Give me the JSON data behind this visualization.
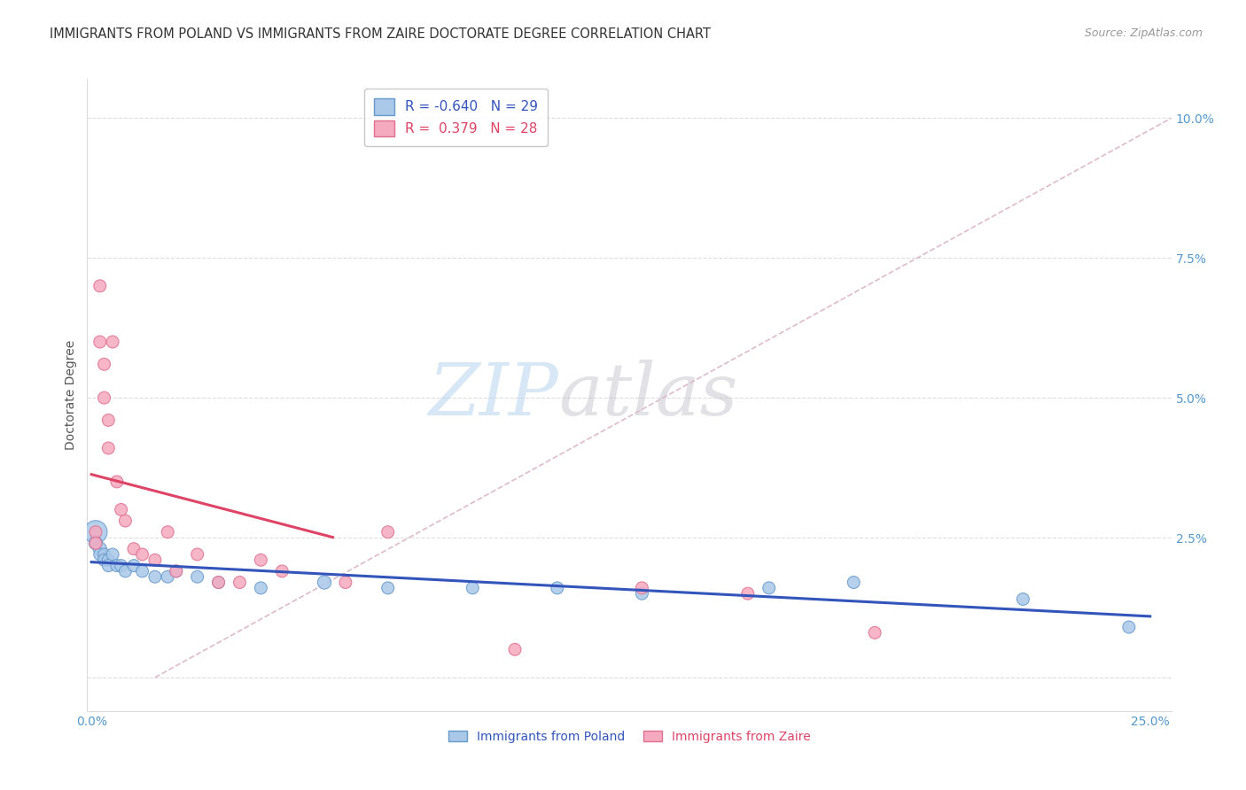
{
  "title": "IMMIGRANTS FROM POLAND VS IMMIGRANTS FROM ZAIRE DOCTORATE DEGREE CORRELATION CHART",
  "source": "Source: ZipAtlas.com",
  "ylabel_label": "Doctorate Degree",
  "x_ticks": [
    0.0,
    0.05,
    0.1,
    0.15,
    0.2,
    0.25
  ],
  "y_ticks": [
    0.0,
    0.025,
    0.05,
    0.075,
    0.1
  ],
  "xlim": [
    -0.001,
    0.255
  ],
  "ylim": [
    -0.006,
    0.107
  ],
  "legend_r_poland": "-0.640",
  "legend_n_poland": "29",
  "legend_r_zaire": " 0.379",
  "legend_n_zaire": "28",
  "poland_color": "#aac8e8",
  "zaire_color": "#f5aabf",
  "poland_edge_color": "#6699cc",
  "zaire_edge_color": "#e07090",
  "poland_line_color": "#3355bb",
  "zaire_line_color": "#dd4466",
  "diag_color": "#ddbbcc",
  "background_color": "#ffffff",
  "grid_color": "#dddddd",
  "title_color": "#333333",
  "tick_color": "#5599cc",
  "source_color": "#999999",
  "ylabel_color": "#555555",
  "title_fontsize": 10.5,
  "axis_label_fontsize": 10,
  "tick_fontsize": 10,
  "legend_fontsize": 11,
  "poland_x": [
    0.001,
    0.001,
    0.002,
    0.002,
    0.003,
    0.003,
    0.004,
    0.004,
    0.005,
    0.006,
    0.007,
    0.008,
    0.01,
    0.012,
    0.015,
    0.018,
    0.02,
    0.025,
    0.03,
    0.04,
    0.055,
    0.07,
    0.09,
    0.11,
    0.13,
    0.16,
    0.18,
    0.22,
    0.245
  ],
  "poland_y": [
    0.026,
    0.024,
    0.023,
    0.022,
    0.022,
    0.021,
    0.021,
    0.02,
    0.022,
    0.02,
    0.02,
    0.019,
    0.02,
    0.019,
    0.018,
    0.018,
    0.019,
    0.018,
    0.017,
    0.016,
    0.017,
    0.016,
    0.016,
    0.016,
    0.015,
    0.016,
    0.017,
    0.014,
    0.009
  ],
  "poland_sizes": [
    350,
    120,
    120,
    100,
    100,
    100,
    100,
    100,
    100,
    100,
    100,
    100,
    100,
    100,
    100,
    100,
    100,
    100,
    100,
    100,
    120,
    100,
    100,
    100,
    100,
    100,
    100,
    100,
    100
  ],
  "zaire_x": [
    0.001,
    0.001,
    0.002,
    0.002,
    0.003,
    0.003,
    0.004,
    0.004,
    0.005,
    0.006,
    0.007,
    0.008,
    0.01,
    0.012,
    0.015,
    0.018,
    0.02,
    0.025,
    0.03,
    0.035,
    0.04,
    0.045,
    0.06,
    0.07,
    0.1,
    0.13,
    0.155,
    0.185
  ],
  "zaire_y": [
    0.026,
    0.024,
    0.07,
    0.06,
    0.056,
    0.05,
    0.046,
    0.041,
    0.06,
    0.035,
    0.03,
    0.028,
    0.023,
    0.022,
    0.021,
    0.026,
    0.019,
    0.022,
    0.017,
    0.017,
    0.021,
    0.019,
    0.017,
    0.026,
    0.005,
    0.016,
    0.015,
    0.008
  ],
  "zaire_sizes": [
    100,
    100,
    100,
    100,
    100,
    100,
    100,
    100,
    100,
    100,
    100,
    100,
    100,
    100,
    100,
    100,
    100,
    100,
    100,
    100,
    100,
    100,
    100,
    100,
    100,
    100,
    100,
    100
  ]
}
